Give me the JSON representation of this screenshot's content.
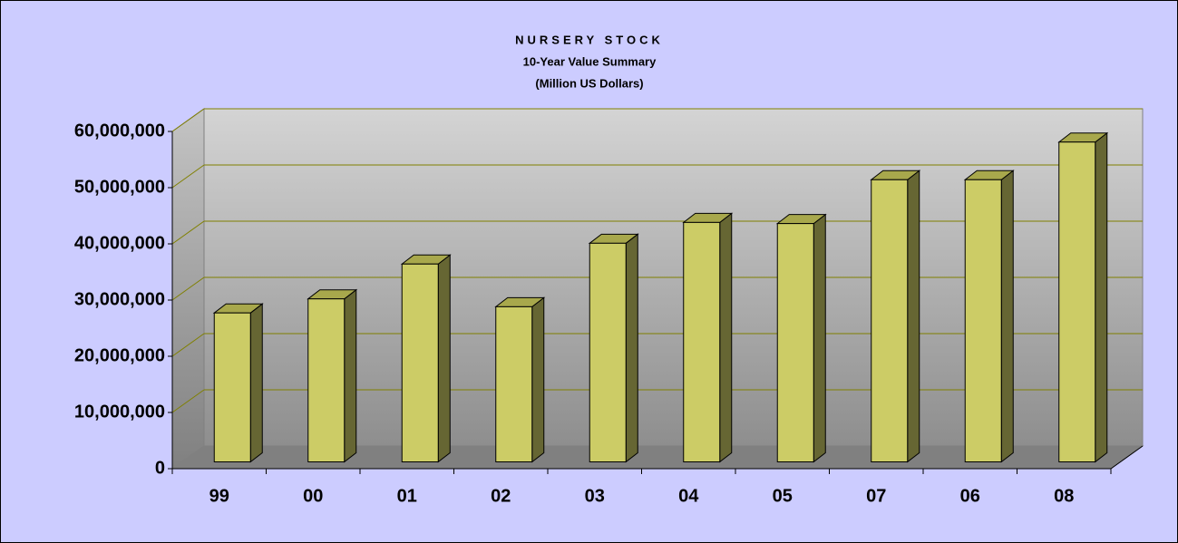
{
  "chart_data": {
    "type": "bar3d",
    "title": "NURSERY STOCK",
    "subtitle": [
      "10-Year Value Summary",
      "(Million US Dollars)"
    ],
    "categories": [
      "99",
      "00",
      "01",
      "02",
      "03",
      "04",
      "05",
      "07",
      "06",
      "08"
    ],
    "values": [
      26500000,
      29000000,
      35200000,
      27600000,
      38900000,
      42600000,
      42400000,
      50200000,
      50200000,
      56900000
    ],
    "color": "#cccc66",
    "ylim": [
      0,
      60000000
    ],
    "yticks": [
      0,
      {
        "value": 10000000,
        "label": "10,000,000"
      },
      {
        "value": 20000000,
        "label": "20,000,000"
      },
      {
        "value": 30000000,
        "label": "30,000,000"
      },
      {
        "value": 40000000,
        "label": "40,000,000"
      },
      {
        "value": 50000000,
        "label": "50,000,000"
      },
      {
        "value": 60000000,
        "label": "60,000,000"
      }
    ],
    "grid": true
  }
}
